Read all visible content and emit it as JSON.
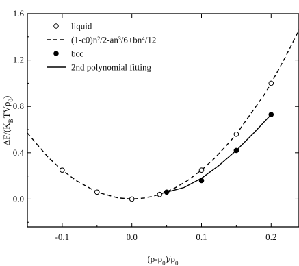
{
  "chart_data": {
    "type": "line",
    "title": "",
    "xlabel": "(ρ-ρ0)/ρ0",
    "ylabel": "ΔF/(KBTVρ0)",
    "xlim": [
      -0.15,
      0.24
    ],
    "ylim": [
      -0.24,
      1.6
    ],
    "xticks": [
      -0.1,
      0.0,
      0.1,
      0.2
    ],
    "xtick_labels": [
      "-0.1",
      "0.0",
      "0.1",
      "0.2"
    ],
    "yticks": [
      0.0,
      0.4,
      0.8,
      1.2,
      1.6
    ],
    "ytick_labels": [
      "0.0",
      "0.4",
      "0.8",
      "1.2",
      "1.6"
    ],
    "grid": false,
    "legend_position": "top-left",
    "series": [
      {
        "name": "liquid",
        "style": "scatter",
        "marker": "open-circle",
        "x": [
          -0.1,
          -0.05,
          0.0,
          0.04,
          0.1,
          0.15,
          0.2
        ],
        "y": [
          0.25,
          0.06,
          0.0,
          0.04,
          0.25,
          0.56,
          1.0
        ]
      },
      {
        "name": "(1-c0)n²/2-an³/6+bn⁴/12",
        "style": "dashed-line",
        "x": [
          -0.15,
          -0.12,
          -0.1,
          -0.08,
          -0.05,
          -0.02,
          0.0,
          0.02,
          0.04,
          0.06,
          0.08,
          0.1,
          0.12,
          0.14,
          0.15,
          0.17,
          0.19,
          0.2,
          0.22,
          0.24
        ],
        "y": [
          0.57,
          0.36,
          0.25,
          0.16,
          0.06,
          0.01,
          0.0,
          0.01,
          0.04,
          0.09,
          0.16,
          0.25,
          0.36,
          0.49,
          0.56,
          0.73,
          0.9,
          1.0,
          1.22,
          1.46
        ]
      },
      {
        "name": "bcc",
        "style": "scatter",
        "marker": "filled-circle",
        "x": [
          0.05,
          0.1,
          0.15,
          0.2
        ],
        "y": [
          0.06,
          0.16,
          0.42,
          0.73
        ]
      },
      {
        "name": "2nd polynomial fitting",
        "style": "solid-line",
        "x": [
          0.05,
          0.075,
          0.1,
          0.125,
          0.15,
          0.175,
          0.2
        ],
        "y": [
          0.06,
          0.1,
          0.18,
          0.29,
          0.42,
          0.57,
          0.73
        ]
      }
    ],
    "legend": [
      {
        "marker": "open-circle",
        "label": "liquid"
      },
      {
        "marker": "dashed-line",
        "label": "(1-c0)n²/2-an³/6+bn⁴/12"
      },
      {
        "marker": "filled-circle",
        "label": "bcc"
      },
      {
        "marker": "solid-line",
        "label": "2nd polynomial fitting"
      }
    ]
  }
}
